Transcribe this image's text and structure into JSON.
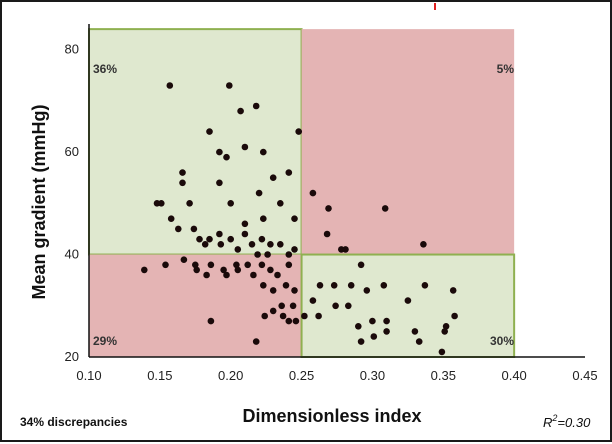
{
  "chart_data": {
    "type": "scatter",
    "xlabel": "Dimensionless index",
    "ylabel": "Mean gradient (mmHg)",
    "xlim": [
      0.1,
      0.45
    ],
    "ylim": [
      20,
      85
    ],
    "x_ticks": [
      "0.10",
      "0.15",
      "0.20",
      "0.25",
      "0.30",
      "0.35",
      "0.40",
      "0.45"
    ],
    "y_ticks": [
      "20",
      "40",
      "60",
      "80"
    ],
    "thresholds": {
      "x": 0.25,
      "y": 40
    },
    "region_labels": {
      "upper_left": "36%",
      "upper_right": "5%",
      "lower_left": "29%",
      "lower_right": "30%"
    },
    "footer_left": "34% discrepancies",
    "r_squared": {
      "prefix": "R",
      "sup": "2",
      "suffix": "=0.30"
    },
    "colors": {
      "green_region": "#dfe8cf",
      "green_border": "#8fb050",
      "red_region": "#e4b4b4",
      "point": "#1a0a0a",
      "accent_top": "#e02020"
    },
    "points": [
      [
        0.157,
        73
      ],
      [
        0.199,
        73
      ],
      [
        0.207,
        68
      ],
      [
        0.218,
        69
      ],
      [
        0.248,
        64
      ],
      [
        0.185,
        64
      ],
      [
        0.192,
        60
      ],
      [
        0.197,
        59
      ],
      [
        0.21,
        61
      ],
      [
        0.223,
        60
      ],
      [
        0.166,
        56
      ],
      [
        0.166,
        54
      ],
      [
        0.192,
        54
      ],
      [
        0.23,
        55
      ],
      [
        0.241,
        56
      ],
      [
        0.148,
        50
      ],
      [
        0.151,
        50
      ],
      [
        0.171,
        50
      ],
      [
        0.2,
        50
      ],
      [
        0.22,
        52
      ],
      [
        0.235,
        50
      ],
      [
        0.158,
        47
      ],
      [
        0.163,
        45
      ],
      [
        0.174,
        45
      ],
      [
        0.185,
        43
      ],
      [
        0.192,
        44
      ],
      [
        0.2,
        43
      ],
      [
        0.21,
        46
      ],
      [
        0.223,
        47
      ],
      [
        0.245,
        47
      ],
      [
        0.21,
        44
      ],
      [
        0.178,
        43
      ],
      [
        0.182,
        42
      ],
      [
        0.193,
        42
      ],
      [
        0.205,
        41
      ],
      [
        0.215,
        42
      ],
      [
        0.222,
        43
      ],
      [
        0.228,
        42
      ],
      [
        0.235,
        42
      ],
      [
        0.245,
        41
      ],
      [
        0.219,
        40
      ],
      [
        0.226,
        40
      ],
      [
        0.241,
        40
      ],
      [
        0.167,
        39
      ],
      [
        0.175,
        38
      ],
      [
        0.186,
        38
      ],
      [
        0.195,
        37
      ],
      [
        0.204,
        38
      ],
      [
        0.212,
        38
      ],
      [
        0.222,
        38
      ],
      [
        0.228,
        37
      ],
      [
        0.233,
        36
      ],
      [
        0.241,
        38
      ],
      [
        0.139,
        37
      ],
      [
        0.154,
        38
      ],
      [
        0.176,
        37
      ],
      [
        0.183,
        36
      ],
      [
        0.197,
        36
      ],
      [
        0.205,
        37
      ],
      [
        0.216,
        36
      ],
      [
        0.223,
        34
      ],
      [
        0.23,
        33
      ],
      [
        0.239,
        34
      ],
      [
        0.245,
        33
      ],
      [
        0.236,
        30
      ],
      [
        0.244,
        30
      ],
      [
        0.237,
        28
      ],
      [
        0.23,
        29
      ],
      [
        0.224,
        28
      ],
      [
        0.241,
        27
      ],
      [
        0.246,
        27
      ],
      [
        0.186,
        27
      ],
      [
        0.218,
        23
      ],
      [
        0.258,
        52
      ],
      [
        0.269,
        49
      ],
      [
        0.268,
        44
      ],
      [
        0.278,
        41
      ],
      [
        0.281,
        41
      ],
      [
        0.309,
        49
      ],
      [
        0.336,
        42
      ],
      [
        0.263,
        34
      ],
      [
        0.258,
        31
      ],
      [
        0.252,
        28
      ],
      [
        0.262,
        28
      ],
      [
        0.274,
        30
      ],
      [
        0.283,
        30
      ],
      [
        0.273,
        34
      ],
      [
        0.285,
        34
      ],
      [
        0.296,
        33
      ],
      [
        0.292,
        38
      ],
      [
        0.308,
        34
      ],
      [
        0.29,
        26
      ],
      [
        0.3,
        27
      ],
      [
        0.31,
        25
      ],
      [
        0.31,
        27
      ],
      [
        0.301,
        24
      ],
      [
        0.292,
        23
      ],
      [
        0.325,
        31
      ],
      [
        0.33,
        25
      ],
      [
        0.333,
        23
      ],
      [
        0.337,
        34
      ],
      [
        0.352,
        26
      ],
      [
        0.351,
        25
      ],
      [
        0.357,
        33
      ],
      [
        0.358,
        28
      ],
      [
        0.349,
        21
      ]
    ]
  }
}
